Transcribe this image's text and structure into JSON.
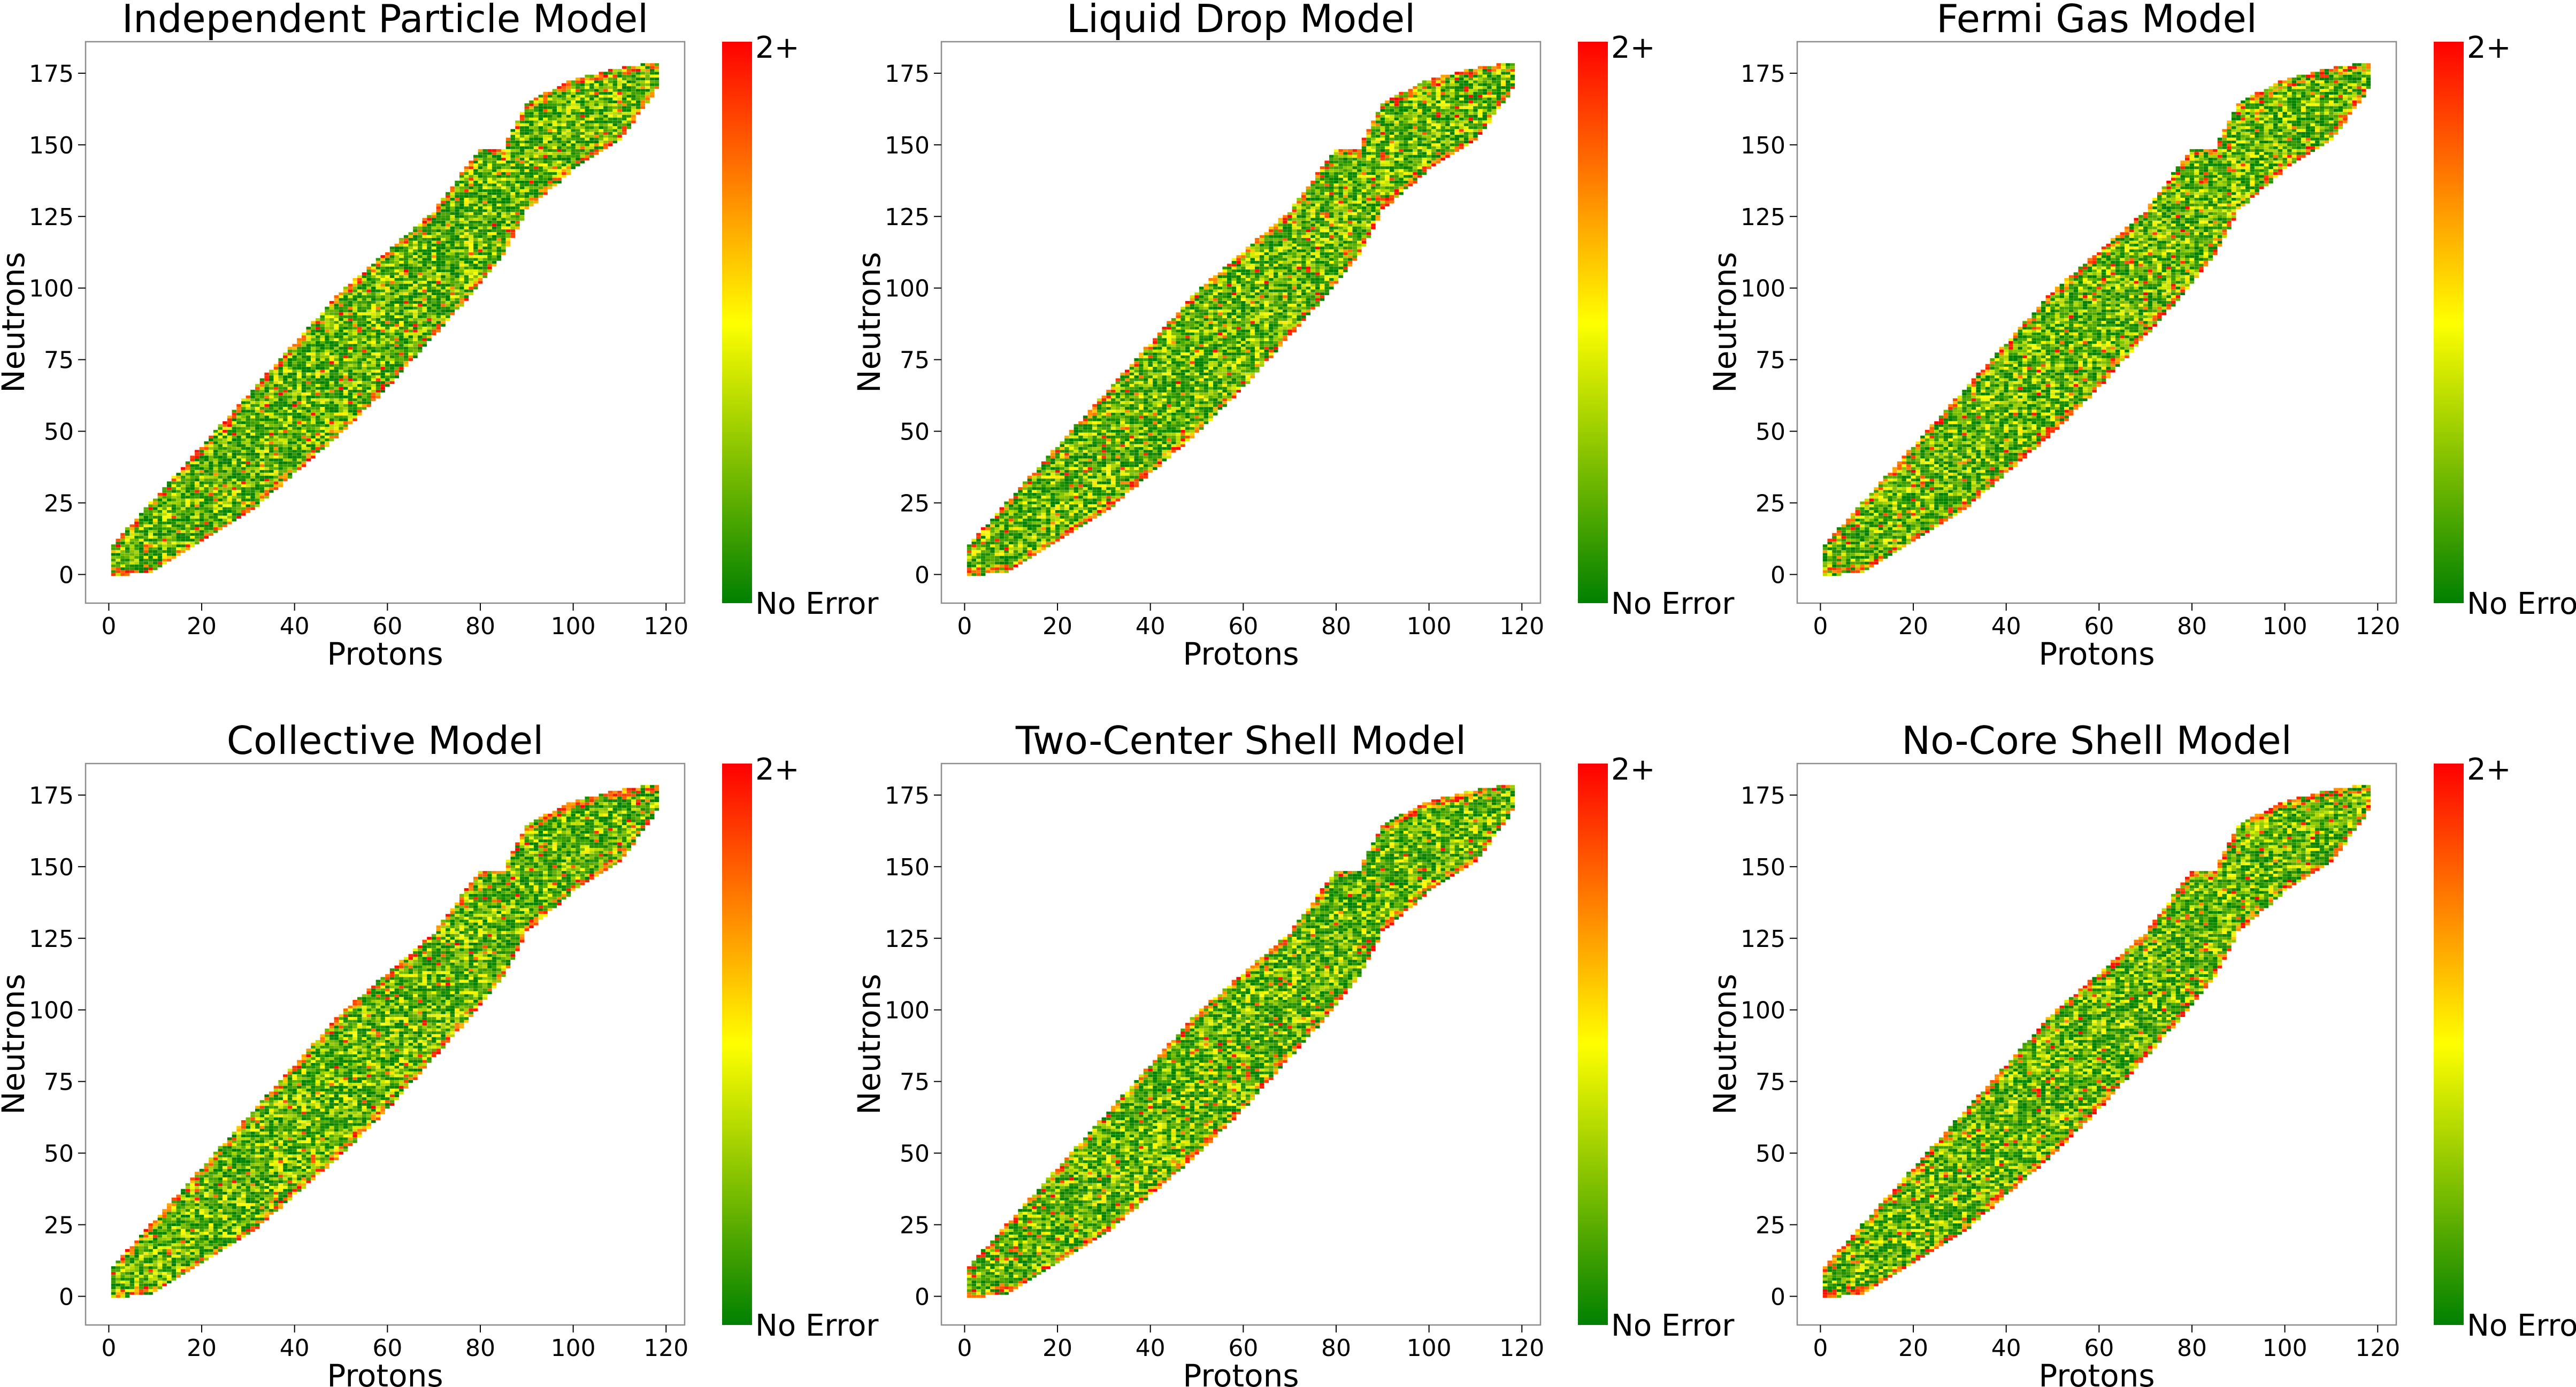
{
  "chart_data": [
    {
      "type": "heatmap",
      "title": "Independent Particle Model",
      "xlabel": "Protons",
      "ylabel": "Neutrons",
      "xlim": [
        -5,
        124
      ],
      "ylim": [
        -10,
        186
      ],
      "xticks": [
        0,
        20,
        40,
        60,
        80,
        100,
        120
      ],
      "yticks": [
        0,
        25,
        50,
        75,
        100,
        125,
        150,
        175
      ],
      "colorbar": {
        "min_label": "No Error",
        "max_label": "2+",
        "colors": [
          "#008000",
          "#ffff00",
          "#ff0000"
        ]
      }
    },
    {
      "type": "heatmap",
      "title": "Liquid Drop Model",
      "xlabel": "Protons",
      "ylabel": "Neutrons",
      "xlim": [
        -5,
        124
      ],
      "ylim": [
        -10,
        186
      ],
      "xticks": [
        0,
        20,
        40,
        60,
        80,
        100,
        120
      ],
      "yticks": [
        0,
        25,
        50,
        75,
        100,
        125,
        150,
        175
      ],
      "colorbar": {
        "min_label": "No Error",
        "max_label": "2+",
        "colors": [
          "#008000",
          "#ffff00",
          "#ff0000"
        ]
      }
    },
    {
      "type": "heatmap",
      "title": "Fermi Gas Model",
      "xlabel": "Protons",
      "ylabel": "Neutrons",
      "xlim": [
        -5,
        124
      ],
      "ylim": [
        -10,
        186
      ],
      "xticks": [
        0,
        20,
        40,
        60,
        80,
        100,
        120
      ],
      "yticks": [
        0,
        25,
        50,
        75,
        100,
        125,
        150,
        175
      ],
      "colorbar": {
        "min_label": "No Error",
        "max_label": "2+",
        "colors": [
          "#008000",
          "#ffff00",
          "#ff0000"
        ]
      }
    },
    {
      "type": "heatmap",
      "title": "Collective Model",
      "xlabel": "Protons",
      "ylabel": "Neutrons",
      "xlim": [
        -5,
        124
      ],
      "ylim": [
        -10,
        186
      ],
      "xticks": [
        0,
        20,
        40,
        60,
        80,
        100,
        120
      ],
      "yticks": [
        0,
        25,
        50,
        75,
        100,
        125,
        150,
        175
      ],
      "colorbar": {
        "min_label": "No Error",
        "max_label": "2+",
        "colors": [
          "#008000",
          "#ffff00",
          "#ff0000"
        ]
      }
    },
    {
      "type": "heatmap",
      "title": "Two-Center Shell Model",
      "xlabel": "Protons",
      "ylabel": "Neutrons",
      "xlim": [
        -5,
        124
      ],
      "ylim": [
        -10,
        186
      ],
      "xticks": [
        0,
        20,
        40,
        60,
        80,
        100,
        120
      ],
      "yticks": [
        0,
        25,
        50,
        75,
        100,
        125,
        150,
        175
      ],
      "colorbar": {
        "min_label": "No Error",
        "max_label": "2+",
        "colors": [
          "#008000",
          "#ffff00",
          "#ff0000"
        ]
      }
    },
    {
      "type": "heatmap",
      "title": "No-Core Shell Model",
      "xlabel": "Protons",
      "ylabel": "Neutrons",
      "xlim": [
        -5,
        124
      ],
      "ylim": [
        -10,
        186
      ],
      "xticks": [
        0,
        20,
        40,
        60,
        80,
        100,
        120
      ],
      "yticks": [
        0,
        25,
        50,
        75,
        100,
        125,
        150,
        175
      ],
      "colorbar": {
        "min_label": "No Error",
        "max_label": "2+",
        "colors": [
          "#008000",
          "#ffff00",
          "#ff0000"
        ]
      }
    }
  ]
}
